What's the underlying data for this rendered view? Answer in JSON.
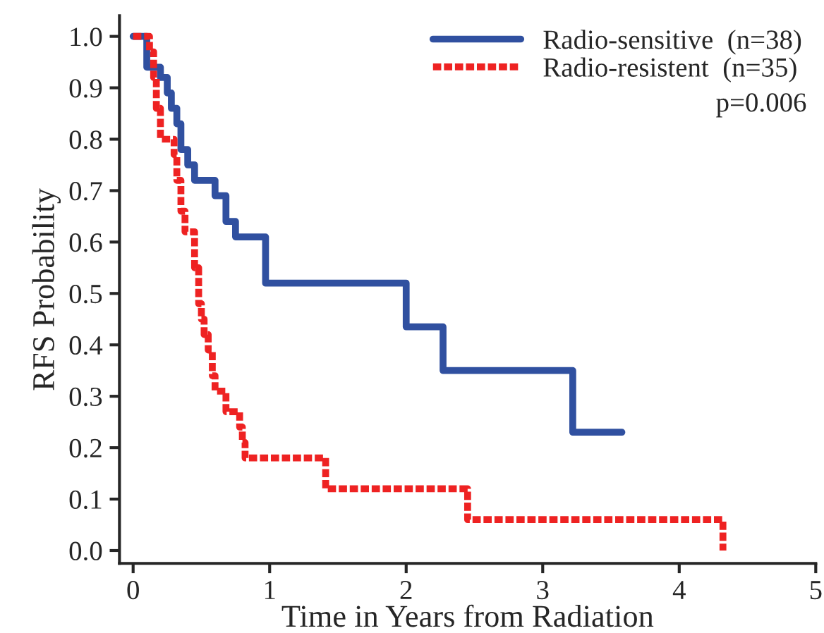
{
  "chart_data": {
    "type": "step",
    "xlabel": "Time in Years from Radiation",
    "ylabel": "RFS Probability",
    "xlim": [
      -0.1,
      5
    ],
    "ylim": [
      -0.025,
      1.04
    ],
    "xticks": [
      0,
      1,
      2,
      3,
      4,
      5
    ],
    "yticks": [
      {
        "value": 0,
        "label": "0.0"
      },
      {
        "value": 0.1,
        "label": "0.1"
      },
      {
        "value": 0.2,
        "label": "0.2"
      },
      {
        "value": 0.3,
        "label": "0.3"
      },
      {
        "value": 0.4,
        "label": "0.4"
      },
      {
        "value": 0.5,
        "label": "0.5"
      },
      {
        "value": 0.6,
        "label": "0.6"
      },
      {
        "value": 0.7,
        "label": "0.7"
      },
      {
        "value": 0.8,
        "label": "0.8"
      },
      {
        "value": 0.9,
        "label": "0.9"
      },
      {
        "value": 1,
        "label": "1.0"
      }
    ],
    "grid": false,
    "legend": "top right",
    "annotations": [
      "p=0.006"
    ],
    "series": [
      {
        "name": "Radio-sensitive  (n=38)",
        "color": "#3050a0",
        "line_style": "solid",
        "x": [
          0,
          0.1,
          0.2,
          0.25,
          0.28,
          0.32,
          0.35,
          0.4,
          0.45,
          0.6,
          0.68,
          0.75,
          0.97,
          2.0,
          2.27,
          3.22,
          3.58
        ],
        "values": [
          1.0,
          0.94,
          0.92,
          0.89,
          0.86,
          0.83,
          0.78,
          0.75,
          0.72,
          0.69,
          0.64,
          0.61,
          0.52,
          0.435,
          0.35,
          0.23,
          0.23
        ]
      },
      {
        "name": "Radio-resistent  (n=35)",
        "color": "#ee2222",
        "line_style": "dashed",
        "x": [
          0,
          0.12,
          0.15,
          0.17,
          0.2,
          0.3,
          0.32,
          0.35,
          0.38,
          0.45,
          0.48,
          0.5,
          0.52,
          0.55,
          0.58,
          0.6,
          0.68,
          0.78,
          0.8,
          0.82,
          1.41,
          2.45,
          4.32
        ],
        "values": [
          1.0,
          0.97,
          0.92,
          0.86,
          0.8,
          0.77,
          0.72,
          0.66,
          0.62,
          0.55,
          0.48,
          0.45,
          0.42,
          0.39,
          0.34,
          0.31,
          0.27,
          0.24,
          0.21,
          0.18,
          0.12,
          0.06,
          0.0
        ]
      }
    ]
  }
}
